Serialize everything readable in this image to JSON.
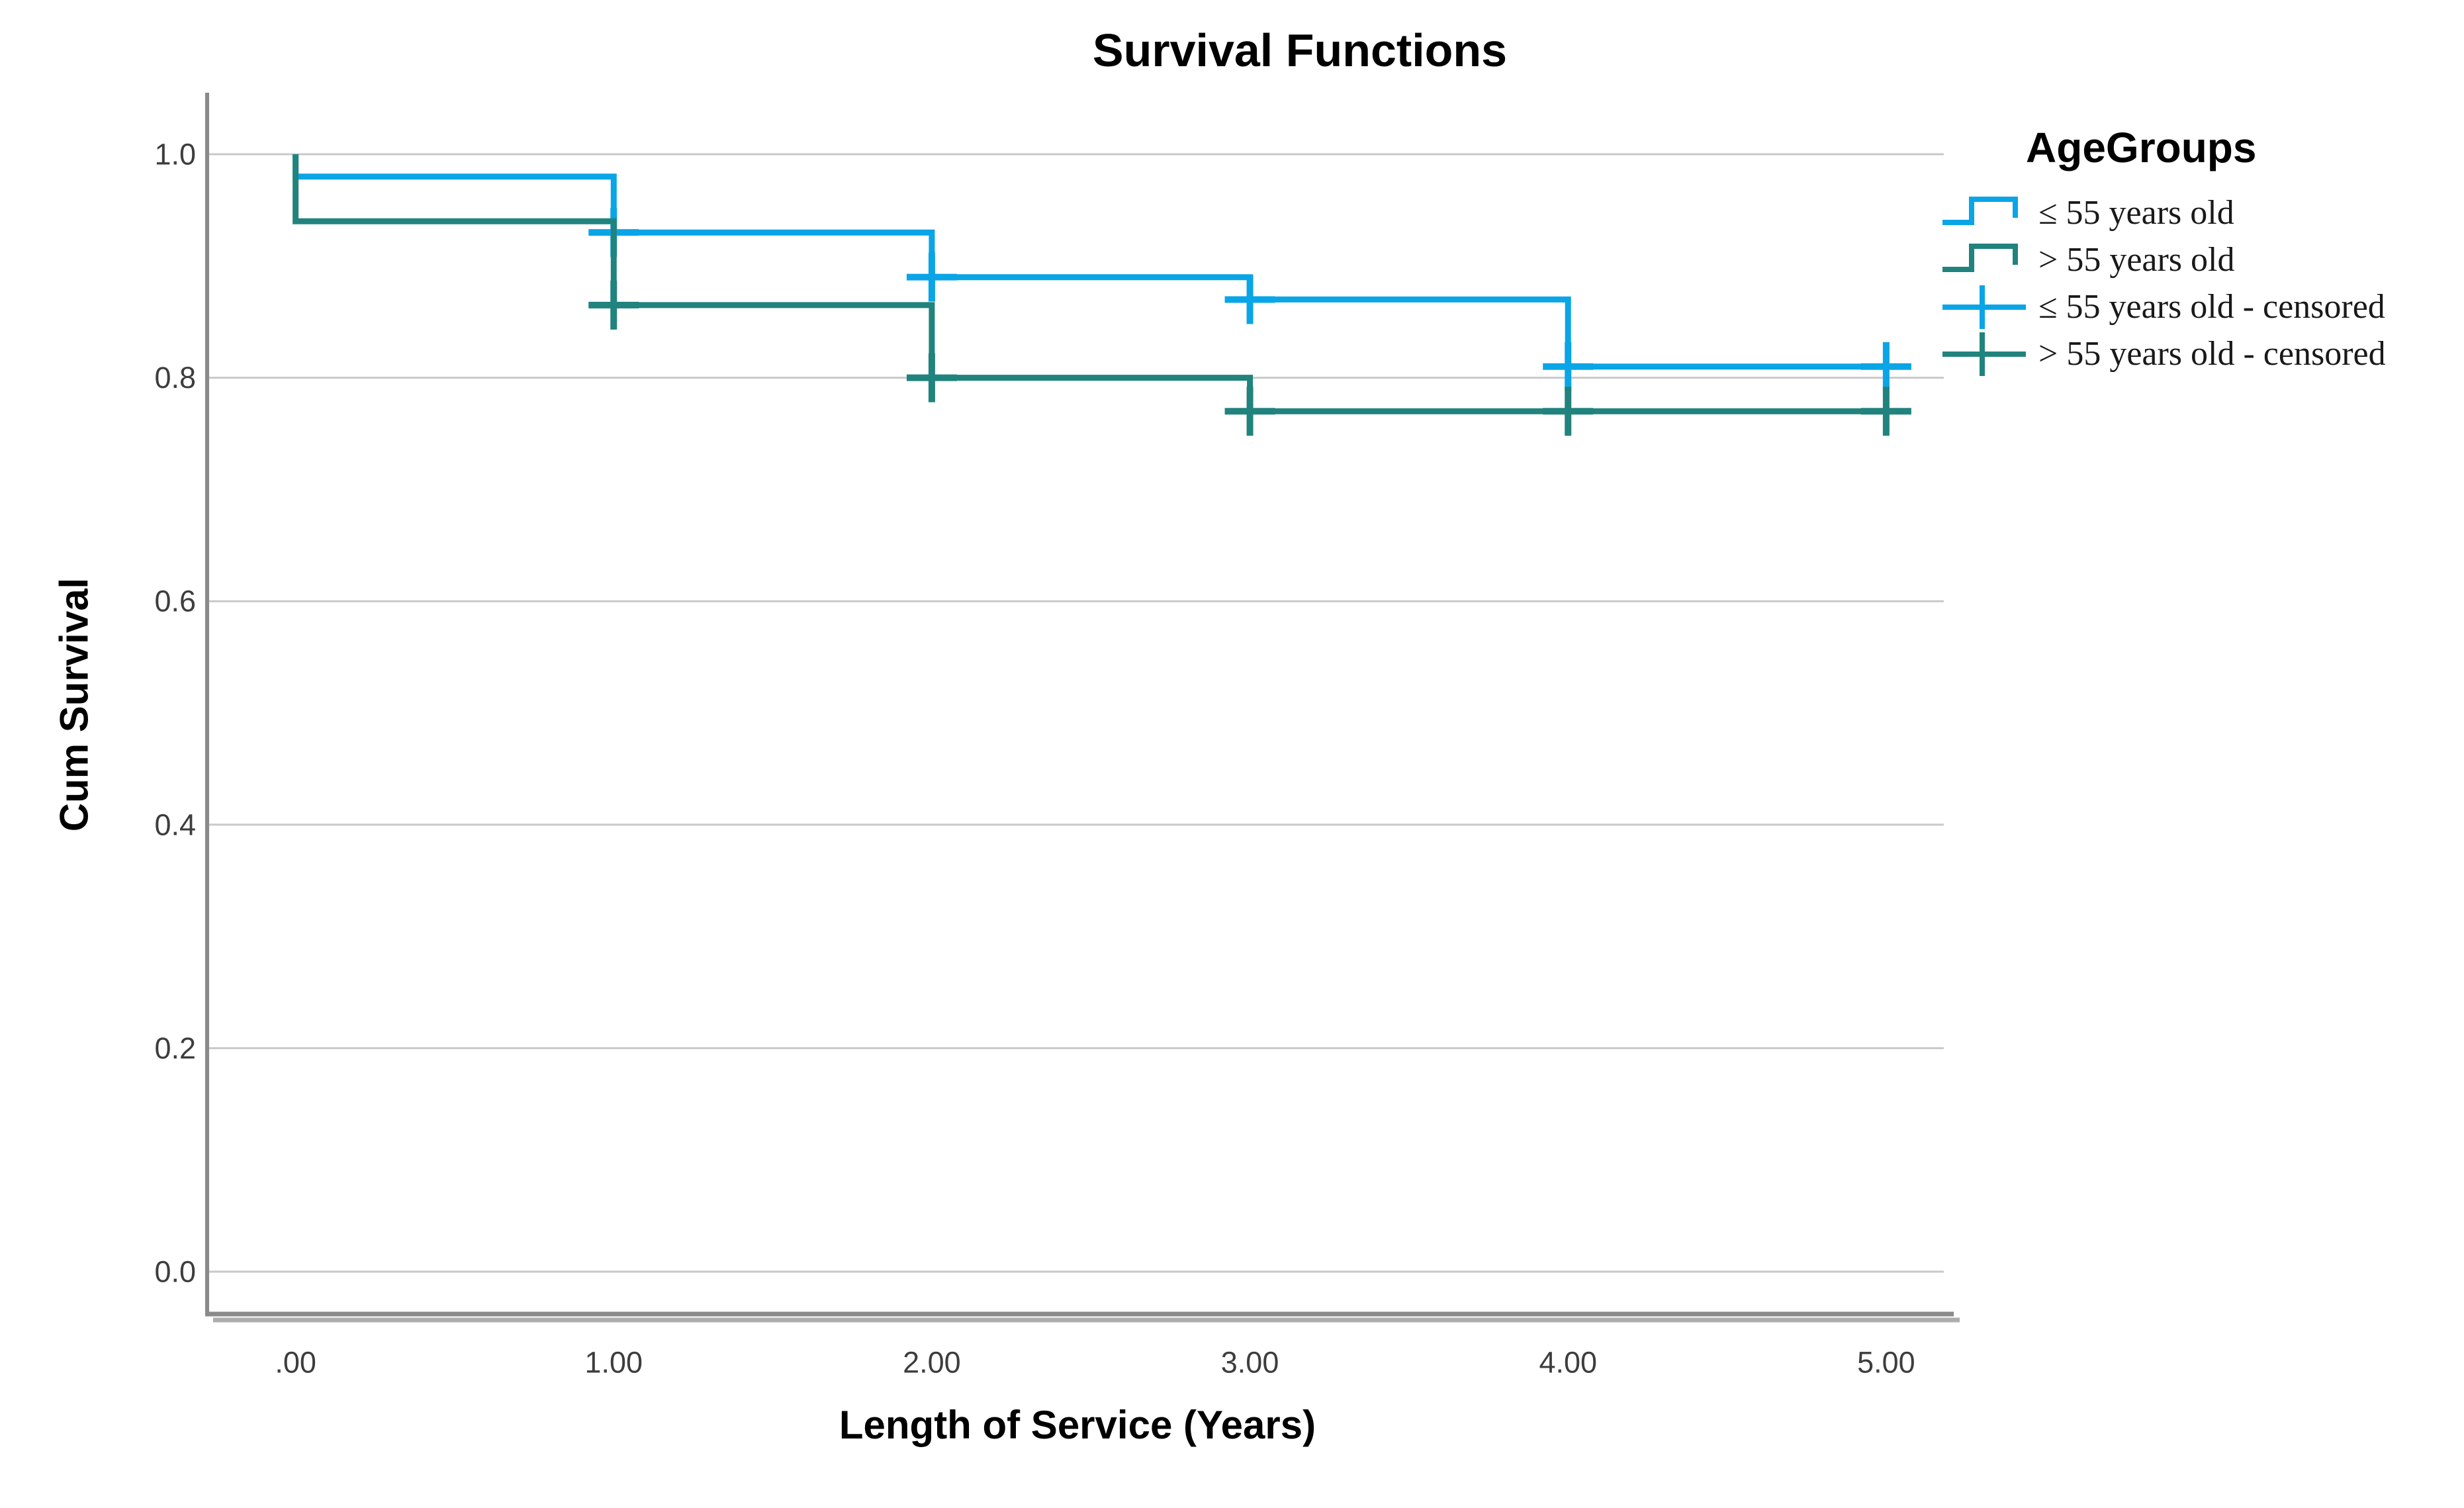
{
  "chart": {
    "title": "Survival Functions",
    "xlabel": "Length of Service (Years)",
    "ylabel": "Cum Survival"
  },
  "legend": {
    "title": "AgeGroups",
    "items": [
      {
        "label": "≤ 55 years old",
        "symbol": "step",
        "color": "#0aa5e6"
      },
      {
        "label": "> 55 years old",
        "symbol": "step",
        "color": "#21837d"
      },
      {
        "label": "≤ 55 years old - censored",
        "symbol": "censored",
        "color": "#0aa5e6"
      },
      {
        "label": "> 55 years old - censored",
        "symbol": "censored",
        "color": "#21837d"
      }
    ]
  },
  "chart_data": {
    "type": "line",
    "subtype": "kaplan-meier-step",
    "title": "Survival Functions",
    "xlabel": "Length of Service (Years)",
    "ylabel": "Cum Survival",
    "xlim": [
      -0.28,
      5.19
    ],
    "ylim": [
      -0.038,
      1.056
    ],
    "x_ticks": [
      ".00",
      "1.00",
      "2.00",
      "3.00",
      "4.00",
      "5.00"
    ],
    "y_ticks": [
      "0.0",
      "0.2",
      "0.4",
      "0.6",
      "0.8",
      "1.0"
    ],
    "grid": "horizontal",
    "legend_position": "right",
    "series": [
      {
        "name": "≤ 55 years old",
        "color": "#0aa5e6",
        "steps": [
          [
            0,
            1.0
          ],
          [
            0,
            0.98
          ],
          [
            1,
            0.98
          ],
          [
            1,
            0.93
          ],
          [
            2,
            0.93
          ],
          [
            2,
            0.89
          ],
          [
            3,
            0.89
          ],
          [
            3,
            0.87
          ],
          [
            4,
            0.87
          ],
          [
            4,
            0.81
          ],
          [
            5.05,
            0.81
          ]
        ],
        "censored": [
          [
            1,
            0.93
          ],
          [
            2,
            0.89
          ],
          [
            3,
            0.87
          ],
          [
            4,
            0.81
          ],
          [
            5,
            0.81
          ]
        ]
      },
      {
        "name": "> 55 years old",
        "color": "#21837d",
        "steps": [
          [
            0,
            1.0
          ],
          [
            0,
            0.94
          ],
          [
            1,
            0.94
          ],
          [
            1,
            0.865
          ],
          [
            2,
            0.865
          ],
          [
            2,
            0.8
          ],
          [
            3,
            0.8
          ],
          [
            3,
            0.77
          ],
          [
            5.05,
            0.77
          ]
        ],
        "censored": [
          [
            1,
            0.865
          ],
          [
            2,
            0.8
          ],
          [
            3,
            0.77
          ],
          [
            4,
            0.77
          ],
          [
            5,
            0.77
          ]
        ]
      }
    ],
    "colors": {
      "grid": "#c9c9c9",
      "frame": "#8a8a8a",
      "frame_shadow": "#adadad",
      "tick_text": "#3d3d3d",
      "title_text": "#000000"
    }
  }
}
